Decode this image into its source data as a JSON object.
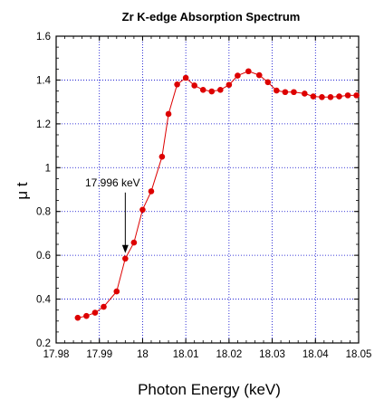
{
  "chart_data": {
    "type": "line",
    "title": "Zr K-edge Absorption Spectrum",
    "xlabel": "Photon Energy (keV)",
    "ylabel": "μ t",
    "xlim": [
      17.98,
      18.05
    ],
    "ylim": [
      0.2,
      1.6
    ],
    "x_ticks": [
      17.98,
      17.99,
      18,
      18.01,
      18.02,
      18.03,
      18.04,
      18.05
    ],
    "x_tick_labels": [
      "17.98",
      "17.99",
      "18",
      "18.01",
      "18.02",
      "18.03",
      "18.04",
      "18.05"
    ],
    "y_ticks": [
      0.2,
      0.4,
      0.6,
      0.8,
      1,
      1.2,
      1.4,
      1.6
    ],
    "y_tick_labels": [
      "0.2",
      "0.4",
      "0.6",
      "0.8",
      "1",
      "1.2",
      "1.4",
      "1.6"
    ],
    "grid": true,
    "grid_color": "#0000cc",
    "marker_color": "#dd0000",
    "line_color": "#dd0000",
    "series": [
      {
        "x": [
          17.985,
          17.987,
          17.989,
          17.991,
          17.994,
          17.996,
          17.998,
          18.0,
          18.002,
          18.0045,
          18.006,
          18.008,
          18.01,
          18.012,
          18.014,
          18.016,
          18.018,
          18.02,
          18.022,
          18.0245,
          18.027,
          18.029,
          18.031,
          18.033,
          18.035,
          18.0375,
          18.0395,
          18.0415,
          18.0435,
          18.0455,
          18.0475,
          18.0495
        ],
        "y": [
          0.315,
          0.323,
          0.338,
          0.365,
          0.435,
          0.585,
          0.658,
          0.808,
          0.892,
          1.05,
          1.245,
          1.38,
          1.41,
          1.375,
          1.355,
          1.348,
          1.355,
          1.378,
          1.42,
          1.44,
          1.422,
          1.39,
          1.352,
          1.345,
          1.345,
          1.338,
          1.325,
          1.322,
          1.322,
          1.325,
          1.33,
          1.33
        ]
      }
    ],
    "annotation": {
      "text": "17.996 keV",
      "x": 17.996,
      "y": 0.585
    }
  }
}
